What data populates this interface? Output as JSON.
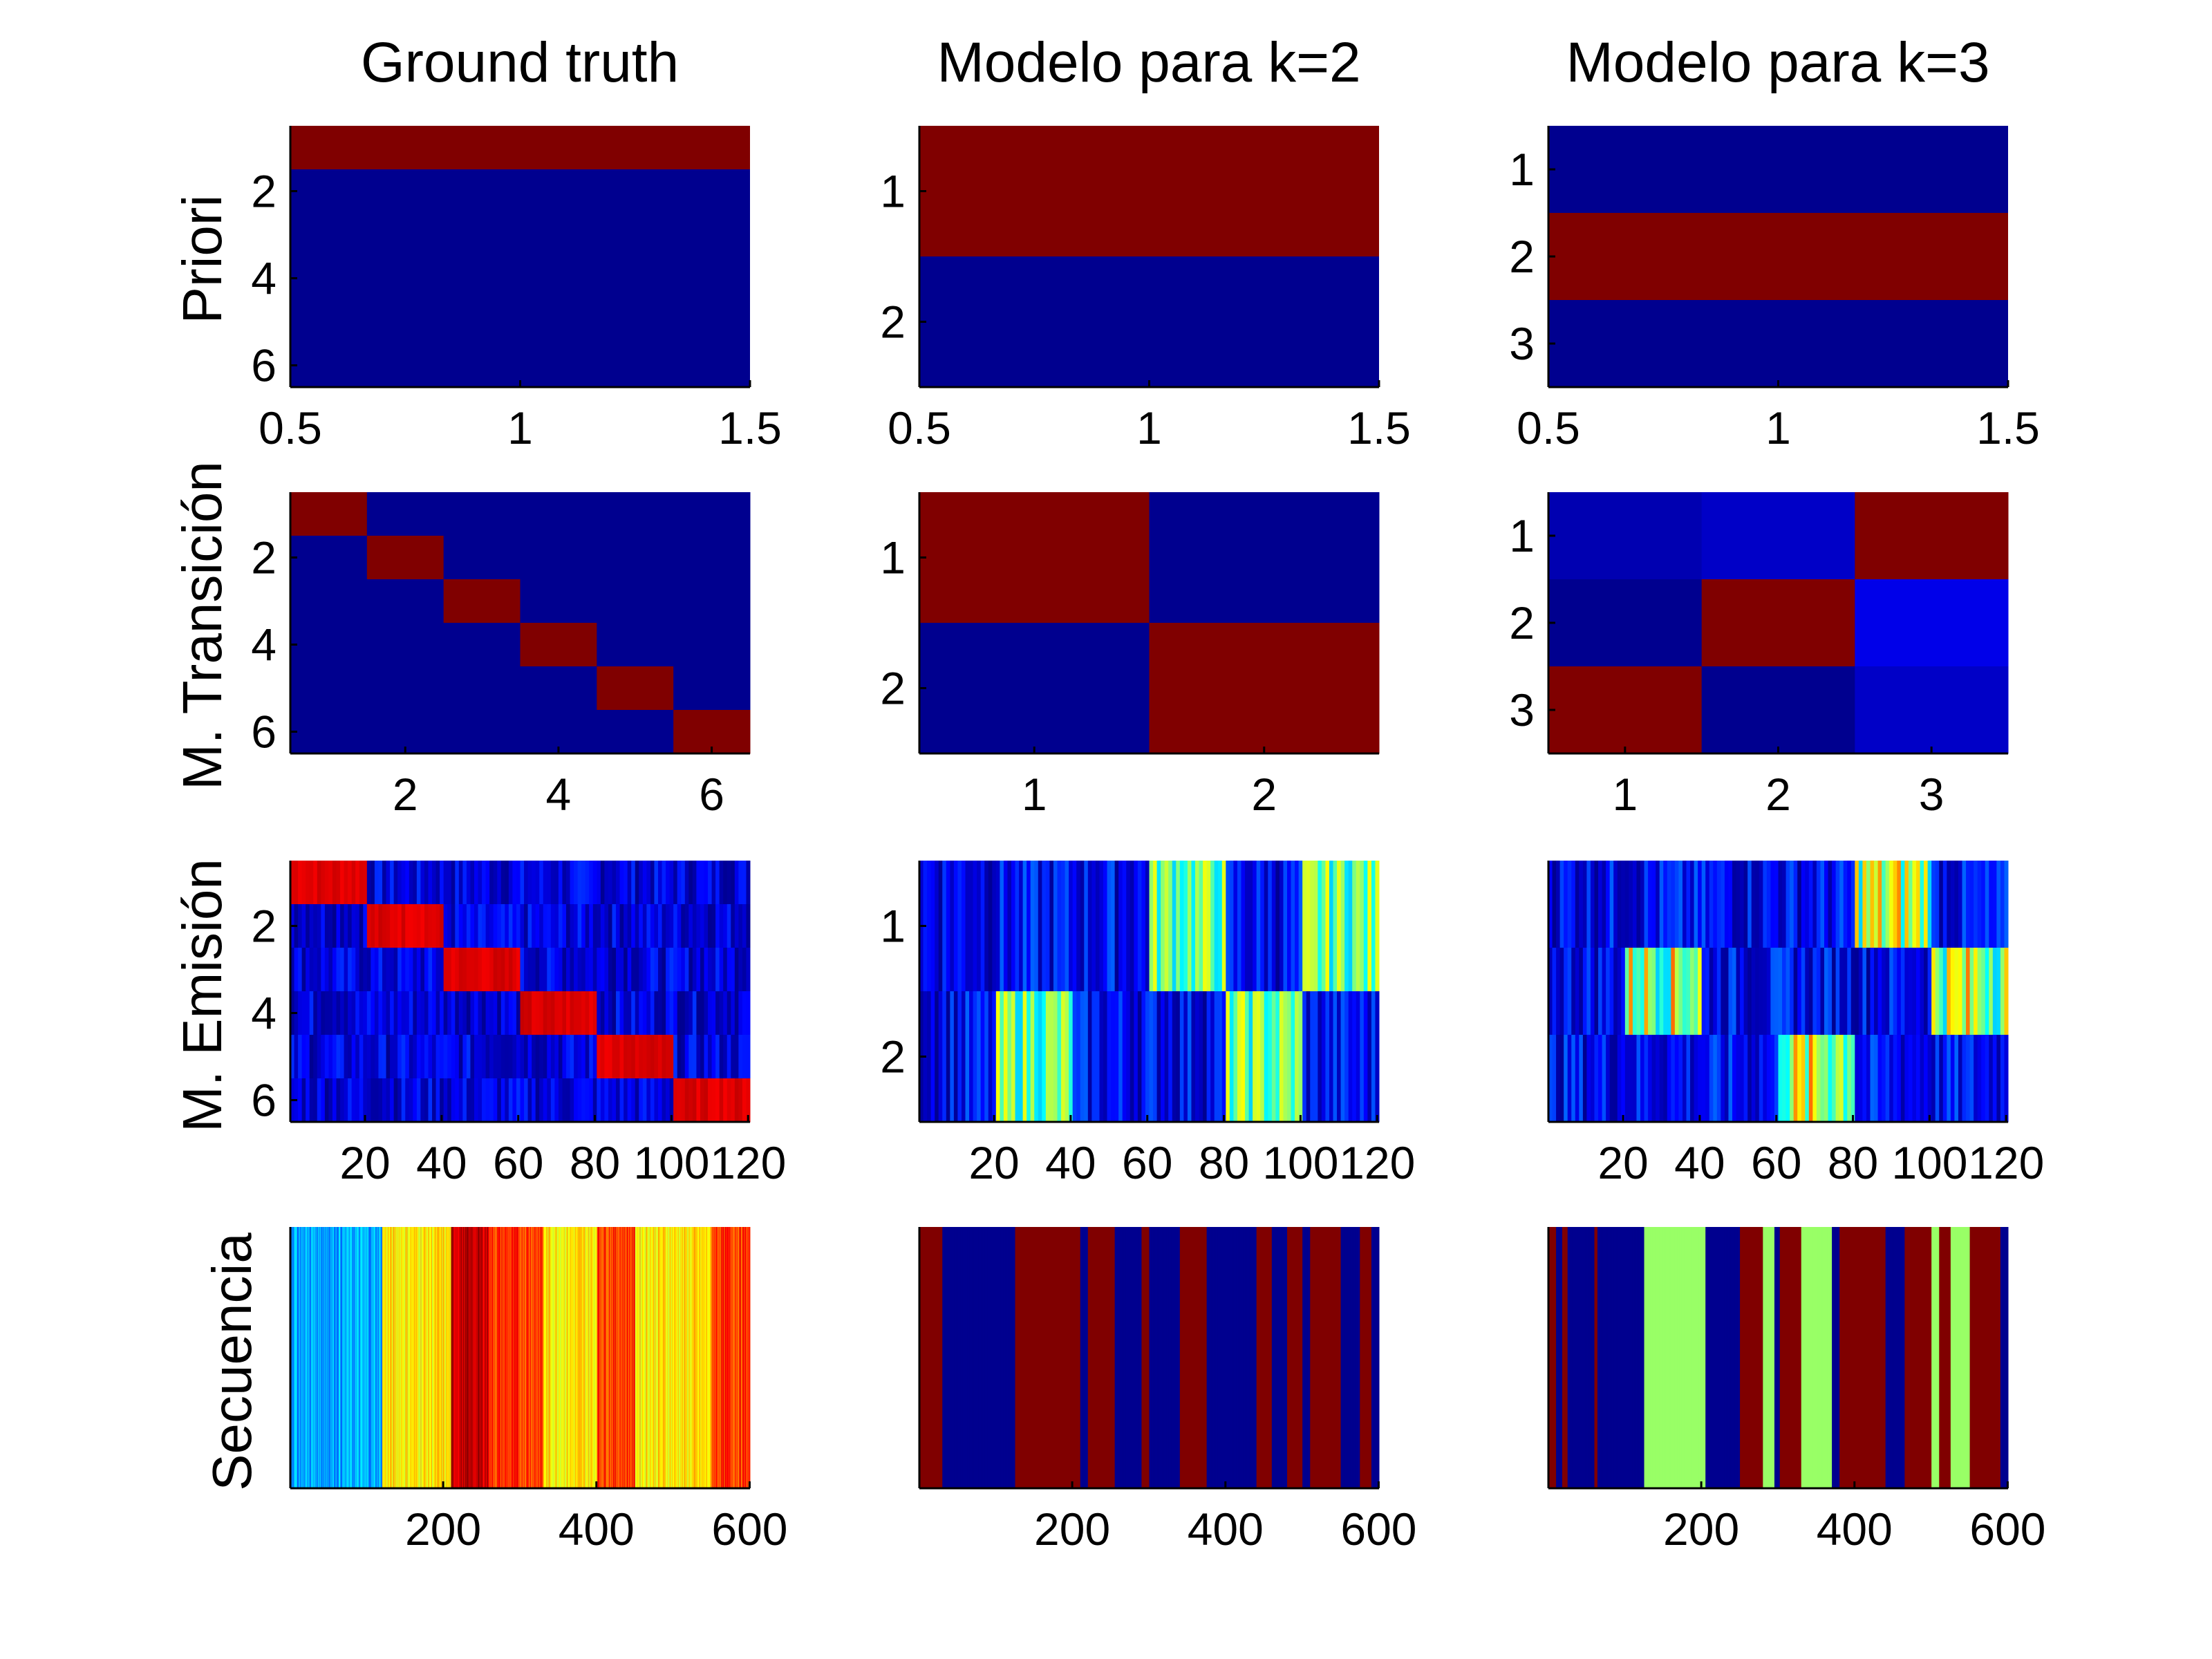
{
  "figure": {
    "column_titles": [
      "Ground truth",
      "Modelo para k=2",
      "Modelo para k=3"
    ],
    "row_labels": [
      "Priori",
      "M. Transición",
      "M. Emisión",
      "Secuencia"
    ]
  },
  "colormap": {
    "stops": [
      "#00008f",
      "#0000ff",
      "#00ffff",
      "#ffff00",
      "#ff0000",
      "#800000"
    ]
  },
  "chart_data": [
    {
      "type": "heatmap",
      "id": "priori-gt",
      "xlabel": "",
      "ylabel": "Priori",
      "xlim": [
        0.5,
        1.5
      ],
      "ylim": [
        0.5,
        6.5
      ],
      "xticks": [
        0.5,
        1,
        1.5
      ],
      "xtick_labels": [
        "0.5",
        "1",
        "1.5"
      ],
      "yticks": [
        2,
        4,
        6
      ],
      "ytick_labels": [
        "2",
        "4",
        "6"
      ],
      "row_values": [
        1,
        0,
        0,
        0,
        0,
        0
      ]
    },
    {
      "type": "heatmap",
      "id": "priori-k2",
      "xlabel": "",
      "ylabel": "",
      "xlim": [
        0.5,
        1.5
      ],
      "ylim": [
        0.5,
        2.5
      ],
      "xticks": [
        0.5,
        1,
        1.5
      ],
      "xtick_labels": [
        "0.5",
        "1",
        "1.5"
      ],
      "yticks": [
        1,
        2
      ],
      "ytick_labels": [
        "1",
        "2"
      ],
      "row_values": [
        1,
        0
      ]
    },
    {
      "type": "heatmap",
      "id": "priori-k3",
      "xlabel": "",
      "ylabel": "",
      "xlim": [
        0.5,
        1.5
      ],
      "ylim": [
        0.5,
        3.5
      ],
      "xticks": [
        0.5,
        1,
        1.5
      ],
      "xtick_labels": [
        "0.5",
        "1",
        "1.5"
      ],
      "yticks": [
        1,
        2,
        3
      ],
      "ytick_labels": [
        "1",
        "2",
        "3"
      ],
      "row_values": [
        0,
        1,
        0
      ]
    },
    {
      "type": "heatmap",
      "id": "trans-gt",
      "xlabel": "",
      "ylabel": "M. Transición",
      "xlim": [
        0.5,
        6.5
      ],
      "ylim": [
        0.5,
        6.5
      ],
      "xticks": [
        2,
        4,
        6
      ],
      "xtick_labels": [
        "2",
        "4",
        "6"
      ],
      "yticks": [
        2,
        4,
        6
      ],
      "ytick_labels": [
        "2",
        "4",
        "6"
      ],
      "matrix": [
        [
          1,
          0,
          0,
          0,
          0,
          0
        ],
        [
          0,
          1,
          0,
          0,
          0,
          0
        ],
        [
          0,
          0,
          1,
          0,
          0,
          0
        ],
        [
          0,
          0,
          0,
          1,
          0,
          0
        ],
        [
          0,
          0,
          0,
          0,
          1,
          0
        ],
        [
          0,
          0,
          0,
          0,
          0,
          1
        ]
      ]
    },
    {
      "type": "heatmap",
      "id": "trans-k2",
      "xlabel": "",
      "ylabel": "",
      "xlim": [
        0.5,
        2.5
      ],
      "ylim": [
        0.5,
        2.5
      ],
      "xticks": [
        1,
        2
      ],
      "xtick_labels": [
        "1",
        "2"
      ],
      "yticks": [
        1,
        2
      ],
      "ytick_labels": [
        "1",
        "2"
      ],
      "matrix": [
        [
          1,
          0
        ],
        [
          0,
          1
        ]
      ]
    },
    {
      "type": "heatmap",
      "id": "trans-k3",
      "xlabel": "",
      "ylabel": "",
      "xlim": [
        0.5,
        3.5
      ],
      "ylim": [
        0.5,
        3.5
      ],
      "xticks": [
        1,
        2,
        3
      ],
      "xtick_labels": [
        "1",
        "2",
        "3"
      ],
      "yticks": [
        1,
        2,
        3
      ],
      "ytick_labels": [
        "1",
        "2",
        "3"
      ],
      "matrix": [
        [
          0.03,
          0.05,
          1
        ],
        [
          0.0,
          1,
          0.08
        ],
        [
          1,
          0.0,
          0.05
        ]
      ]
    },
    {
      "type": "heatmap",
      "id": "emis-gt",
      "xlabel": "",
      "ylabel": "M. Emisión",
      "xlim": [
        0.5,
        120.5
      ],
      "ylim": [
        0.5,
        6.5
      ],
      "xticks": [
        20,
        40,
        60,
        80,
        100,
        120
      ],
      "xtick_labels": [
        "20",
        "40",
        "60",
        "80",
        "100",
        "120"
      ],
      "yticks": [
        2,
        4,
        6
      ],
      "ytick_labels": [
        "2",
        "4",
        "6"
      ],
      "rows": 6,
      "block_start": [
        1,
        21,
        41,
        61,
        81,
        101
      ],
      "block_end": [
        20,
        40,
        60,
        80,
        100,
        120
      ],
      "block_level": 0.9,
      "background_range": [
        0.0,
        0.15
      ]
    },
    {
      "type": "heatmap",
      "id": "emis-k2",
      "xlabel": "",
      "ylabel": "",
      "xlim": [
        0.5,
        120.5
      ],
      "ylim": [
        0.5,
        2.5
      ],
      "xticks": [
        20,
        40,
        60,
        80,
        100,
        120
      ],
      "xtick_labels": [
        "20",
        "40",
        "60",
        "80",
        "100",
        "120"
      ],
      "yticks": [
        1,
        2
      ],
      "ytick_labels": [
        "1",
        "2"
      ],
      "rows": 2,
      "active_ranges": [
        [
          [
            61,
            80
          ],
          [
            101,
            120
          ]
        ],
        [
          [
            21,
            40
          ],
          [
            81,
            100
          ]
        ]
      ],
      "active_level_range": [
        0.3,
        0.6
      ],
      "background_range": [
        0.0,
        0.2
      ]
    },
    {
      "type": "heatmap",
      "id": "emis-k3",
      "xlabel": "",
      "ylabel": "",
      "xlim": [
        0.5,
        120.5
      ],
      "ylim": [
        0.5,
        3.5
      ],
      "xticks": [
        20,
        40,
        60,
        80,
        100,
        120
      ],
      "xtick_labels": [
        "20",
        "40",
        "60",
        "80",
        "100",
        "120"
      ],
      "yticks": [],
      "ytick_labels": [],
      "rows": 3,
      "active_ranges": [
        [
          [
            81,
            100
          ]
        ],
        [
          [
            21,
            40
          ],
          [
            101,
            120
          ]
        ],
        [
          [
            61,
            80
          ]
        ]
      ],
      "active_level_range": [
        0.3,
        0.75
      ],
      "background_range": [
        0.0,
        0.2
      ]
    },
    {
      "type": "heatmap",
      "id": "seq-gt",
      "xlabel": "",
      "ylabel": "Secuencia",
      "xlim": [
        0.5,
        600.5
      ],
      "ylim": [
        0,
        1
      ],
      "xticks": [
        200,
        400,
        600
      ],
      "xtick_labels": [
        "200",
        "400",
        "600"
      ],
      "yticks": [],
      "ytick_labels": [],
      "segments": [
        {
          "start": 1,
          "end": 120,
          "level": 0.27
        },
        {
          "start": 121,
          "end": 210,
          "level": 0.62
        },
        {
          "start": 211,
          "end": 260,
          "level": 0.92
        },
        {
          "start": 261,
          "end": 330,
          "level": 0.8
        },
        {
          "start": 331,
          "end": 400,
          "level": 0.62
        },
        {
          "start": 401,
          "end": 450,
          "level": 0.8
        },
        {
          "start": 451,
          "end": 550,
          "level": 0.62
        },
        {
          "start": 551,
          "end": 600,
          "level": 0.8
        }
      ]
    },
    {
      "type": "heatmap",
      "id": "seq-k2",
      "xlabel": "",
      "ylabel": "",
      "xlim": [
        0.5,
        600.5
      ],
      "ylim": [
        0,
        1
      ],
      "xticks": [
        200,
        400,
        600
      ],
      "xtick_labels": [
        "200",
        "400",
        "600"
      ],
      "yticks": [],
      "ytick_labels": [],
      "segments": [
        {
          "start": 1,
          "end": 30,
          "level": 1
        },
        {
          "start": 31,
          "end": 125,
          "level": 0
        },
        {
          "start": 126,
          "end": 210,
          "level": 1
        },
        {
          "start": 211,
          "end": 220,
          "level": 0
        },
        {
          "start": 221,
          "end": 255,
          "level": 1
        },
        {
          "start": 256,
          "end": 290,
          "level": 0
        },
        {
          "start": 291,
          "end": 300,
          "level": 1
        },
        {
          "start": 301,
          "end": 340,
          "level": 0
        },
        {
          "start": 341,
          "end": 375,
          "level": 1
        },
        {
          "start": 376,
          "end": 440,
          "level": 0
        },
        {
          "start": 441,
          "end": 460,
          "level": 1
        },
        {
          "start": 461,
          "end": 480,
          "level": 0
        },
        {
          "start": 481,
          "end": 500,
          "level": 1
        },
        {
          "start": 501,
          "end": 510,
          "level": 0
        },
        {
          "start": 511,
          "end": 550,
          "level": 1
        },
        {
          "start": 551,
          "end": 575,
          "level": 0
        },
        {
          "start": 576,
          "end": 590,
          "level": 1
        },
        {
          "start": 591,
          "end": 600,
          "level": 0
        }
      ]
    },
    {
      "type": "heatmap",
      "id": "seq-k3",
      "xlabel": "",
      "ylabel": "",
      "xlim": [
        0.5,
        600.5
      ],
      "ylim": [
        0,
        1
      ],
      "xticks": [
        200,
        400,
        600
      ],
      "xtick_labels": [
        "200",
        "400",
        "600"
      ],
      "yticks": [],
      "ytick_labels": [],
      "segments": [
        {
          "start": 1,
          "end": 10,
          "level": 1
        },
        {
          "start": 11,
          "end": 18,
          "level": 0
        },
        {
          "start": 19,
          "end": 25,
          "level": 1
        },
        {
          "start": 26,
          "end": 60,
          "level": 0
        },
        {
          "start": 61,
          "end": 64,
          "level": 1
        },
        {
          "start": 65,
          "end": 125,
          "level": 0
        },
        {
          "start": 126,
          "end": 205,
          "level": 0.5
        },
        {
          "start": 206,
          "end": 250,
          "level": 0
        },
        {
          "start": 251,
          "end": 280,
          "level": 1
        },
        {
          "start": 281,
          "end": 295,
          "level": 0.5
        },
        {
          "start": 296,
          "end": 302,
          "level": 0
        },
        {
          "start": 303,
          "end": 330,
          "level": 1
        },
        {
          "start": 331,
          "end": 370,
          "level": 0.5
        },
        {
          "start": 371,
          "end": 380,
          "level": 0
        },
        {
          "start": 381,
          "end": 440,
          "level": 1
        },
        {
          "start": 441,
          "end": 465,
          "level": 0
        },
        {
          "start": 466,
          "end": 500,
          "level": 1
        },
        {
          "start": 501,
          "end": 510,
          "level": 0.5
        },
        {
          "start": 511,
          "end": 525,
          "level": 1
        },
        {
          "start": 526,
          "end": 550,
          "level": 0.5
        },
        {
          "start": 551,
          "end": 590,
          "level": 1
        },
        {
          "start": 591,
          "end": 600,
          "level": 0
        }
      ]
    }
  ]
}
